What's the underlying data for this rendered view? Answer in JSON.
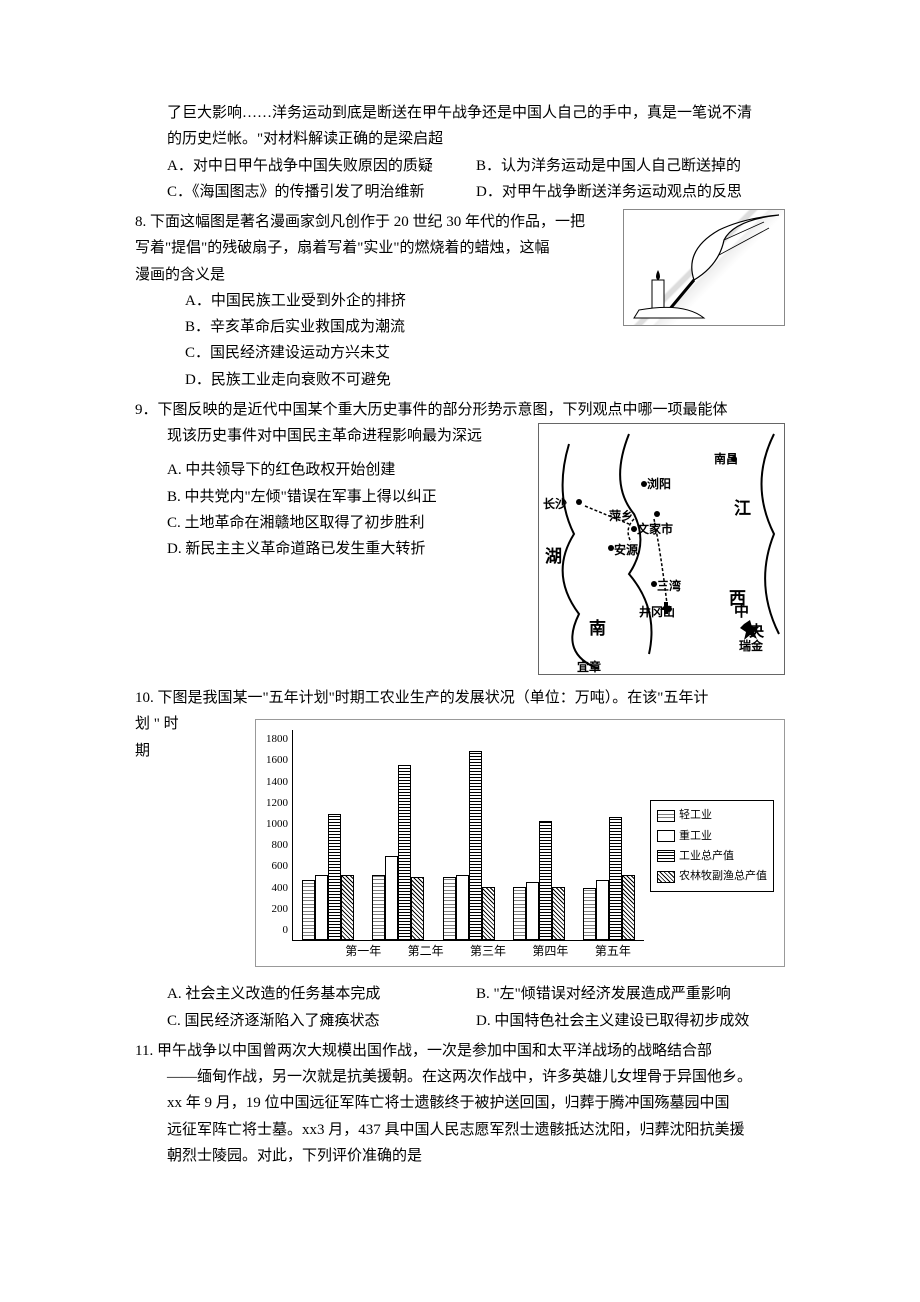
{
  "q7": {
    "line1": "了巨大影响……洋务运动到底是断送在甲午战争还是中国人自己的手中，真是一笔说不清",
    "line2": "的历史烂帐。\"对材料解读正确的是梁启超",
    "optA": "A．对中日甲午战争中国失败原因的质疑",
    "optB": "B．认为洋务运动是中国人自己断送掉的",
    "optC": "C．《海国图志》的传播引发了明治维新",
    "optD": "D．对甲午战争断送洋务运动观点的反思"
  },
  "q8": {
    "stemLine1": "8. 下面这幅图是著名漫画家剑凡创作于 20 世纪 30 年代的作品，一把",
    "stemLine2": "写着\"提倡\"的残破扇子，扇着写着\"实业\"的燃烧着的蜡烛，这幅",
    "stemLine3": "漫画的含义是",
    "optA": "A．中国民族工业受到外企的排挤",
    "optB": "B．辛亥革命后实业救国成为潮流",
    "optC": "C．国民经济建设运动方兴未艾",
    "optD": "D．民族工业走向衰败不可避免",
    "imgAlt": "提倡扇子与实业蜡烛漫画"
  },
  "q9": {
    "stemLine1": "9．下图反映的是近代中国某个重大历史事件的部分形势示意图，下列观点中哪一项最能体",
    "stemLine2": "现该历史事件对中国民主革命进程影响最为深远",
    "optA": "A. 中共领导下的红色政权开始创建",
    "optB": "B. 中共党内\"左倾\"错误在军事上得以纠正",
    "optC": "C. 土地革命在湘赣地区取得了初步胜利",
    "optD": "D. 新民主主义革命道路已发生重大转折",
    "map": {
      "labels": [
        "长沙",
        "南昌",
        "萍乡",
        "文家市",
        "湖",
        "江",
        "西",
        "南",
        "井冈山",
        "浏阳",
        "安源",
        "中",
        "央",
        "瑞金",
        "宜章",
        "三湾"
      ]
    }
  },
  "q10": {
    "stemLine1": "10. 下图是我国某一\"五年计划\"时期工农业生产的发展状况（单位：万吨）。在该\"五年计",
    "stemLine2Left": "划 \" 时",
    "stemLine3Left": "期",
    "chart": {
      "type": "bar",
      "ylim": [
        0,
        1800
      ],
      "ytick_step": 200,
      "yticks": [
        1800,
        1600,
        1400,
        1200,
        1000,
        800,
        600,
        400,
        200,
        0
      ],
      "categories": [
        "第一年",
        "第二年",
        "第三年",
        "第四年",
        "第五年"
      ],
      "series": [
        {
          "name": "轻工业",
          "pattern": "pat-light",
          "values": [
            520,
            560,
            540,
            460,
            450
          ]
        },
        {
          "name": "重工业",
          "pattern": "pat-heavy",
          "values": [
            560,
            720,
            560,
            500,
            520
          ]
        },
        {
          "name": "工业总产值",
          "pattern": "pat-total",
          "values": [
            1080,
            1500,
            1620,
            1020,
            1060
          ]
        },
        {
          "name": "农林牧副渔总产值",
          "pattern": "pat-agri",
          "values": [
            560,
            540,
            460,
            460,
            560
          ]
        }
      ],
      "legend_labels": [
        "轻工业",
        "重工业",
        "工业总产值",
        "农林牧副渔总产值"
      ],
      "grid_color": "#e0e0e0",
      "background_color": "#ffffff",
      "label_fontsize": 11
    },
    "optA": "A. 社会主义改造的任务基本完成",
    "optB": "B. \"左\"倾错误对经济发展造成严重影响",
    "optC": "C. 国民经济逐渐陷入了瘫痪状态",
    "optD": "D. 中国特色社会主义建设已取得初步成效"
  },
  "q11": {
    "stemLine1": "11. 甲午战争以中国曾两次大规模出国作战，一次是参加中国和太平洋战场的战略结合部",
    "stemLine2": "——缅甸作战，另一次就是抗美援朝。在这两次作战中，许多英雄儿女埋骨于异国他乡。",
    "stemLine3": "xx 年 9 月，19 位中国远征军阵亡将士遗骸终于被护送回国，归葬于腾冲国殇墓园中国",
    "stemLine4": "远征军阵亡将士墓。xx3 月，437 具中国人民志愿军烈士遗骸抵达沈阳，归葬沈阳抗美援",
    "stemLine5": "朝烈士陵园。对此，下列评价准确的是"
  }
}
